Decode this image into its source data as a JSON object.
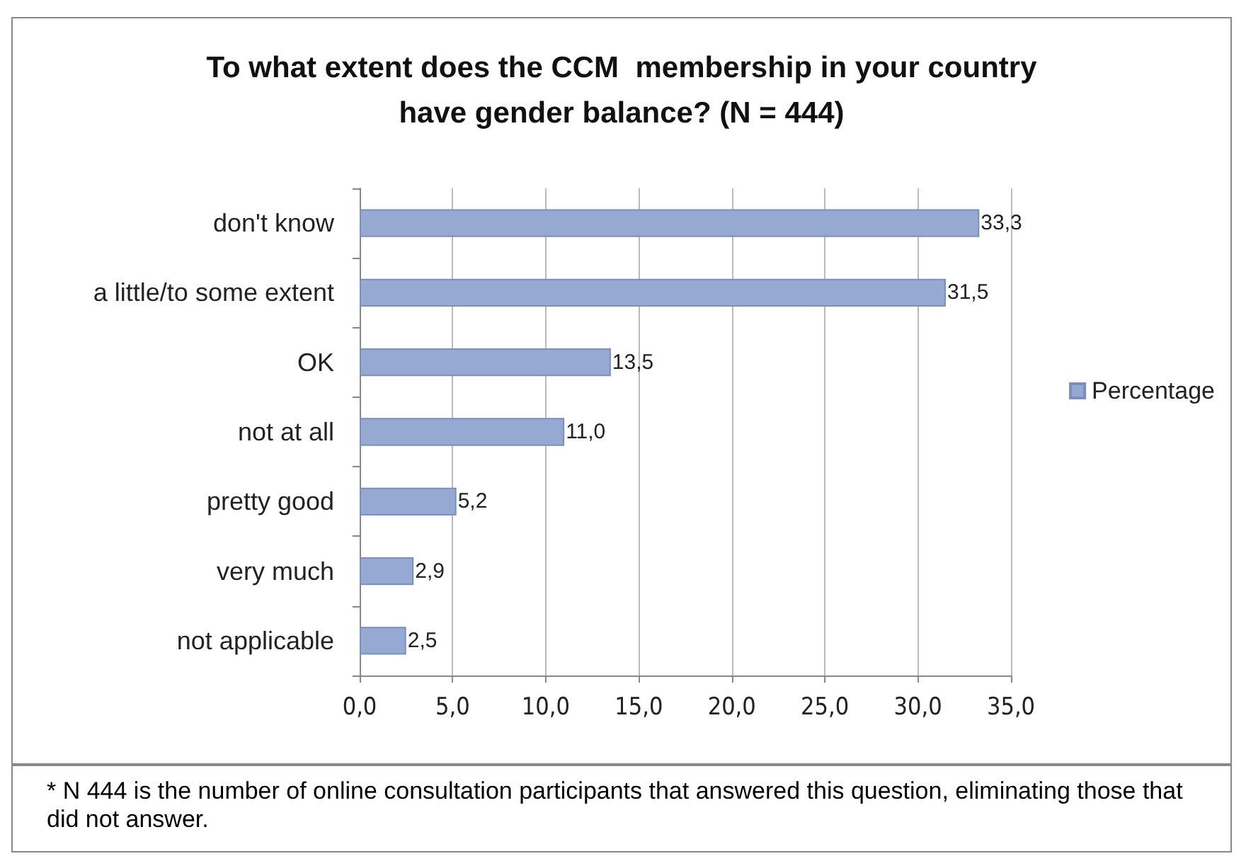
{
  "chart_data": {
    "type": "bar",
    "orientation": "horizontal",
    "title": "To what extent does the CCM  membership in your country\nhave gender balance? (N = 444)",
    "categories": [
      "don't know",
      "a little/to some extent",
      "OK",
      "not at all",
      "pretty good",
      "very much",
      "not applicable"
    ],
    "series": [
      {
        "name": "Percentage",
        "color": "#95a9d3",
        "values": [
          33.3,
          31.5,
          13.5,
          11.0,
          5.2,
          2.9,
          2.5
        ],
        "value_labels": [
          "33,3",
          "31,5",
          "13,5",
          "11,0",
          "5,2",
          "2,9",
          "2,5"
        ]
      }
    ],
    "xlim": [
      0,
      35
    ],
    "xticks": [
      {
        "value": 0,
        "label": "0,0"
      },
      {
        "value": 5,
        "label": "5,0"
      },
      {
        "value": 10,
        "label": "10,0"
      },
      {
        "value": 15,
        "label": "15,0"
      },
      {
        "value": 20,
        "label": "20,0"
      },
      {
        "value": 25,
        "label": "25,0"
      },
      {
        "value": 30,
        "label": "30,0"
      },
      {
        "value": 35,
        "label": "35,0"
      }
    ],
    "grid": "x",
    "legend": "right",
    "annotations": [
      "* N 444 is the number of online consultation participants that answered this question, eliminating those that did not answer."
    ]
  }
}
